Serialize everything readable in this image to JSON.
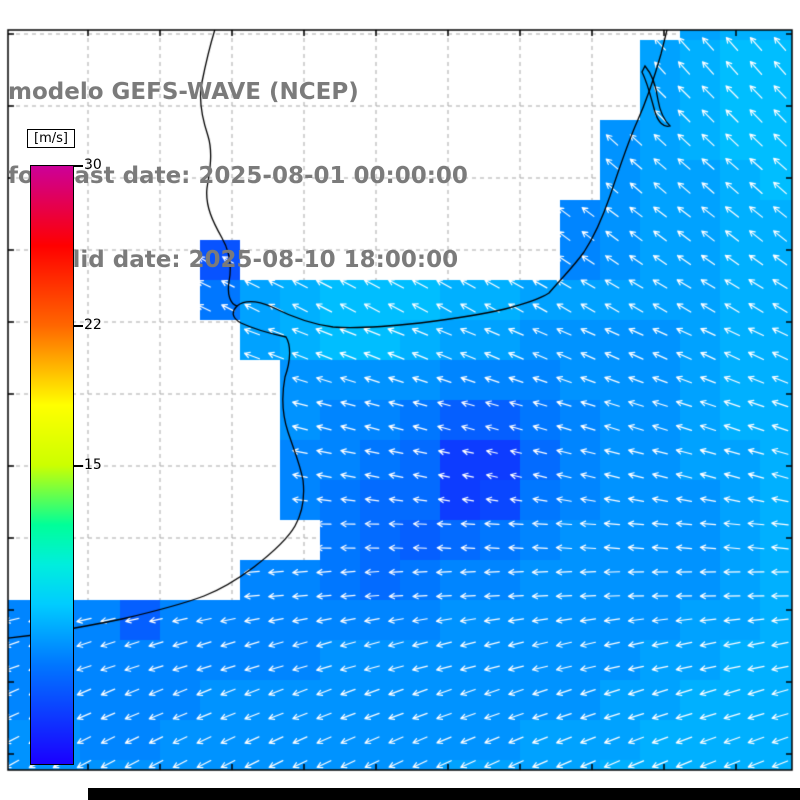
{
  "header": {
    "line1": "modelo GEFS-WAVE (NCEP)",
    "line2": "forecast date: 2025-08-01 00:00:00",
    "line3": "valid date: 2025-08-10 18:00:00",
    "text_color": "#7b7b7b"
  },
  "chart_data": {
    "type": "heatmap",
    "overlay": "vector-field",
    "title": "modelo GEFS-WAVE (NCEP)",
    "units": "m/s",
    "colorbar": {
      "unit_label": "[m/s]",
      "min": 0,
      "max": 30,
      "ticks": [
        {
          "label": "30",
          "value": 30
        },
        {
          "label": "22",
          "value": 22
        },
        {
          "label": "15",
          "value": 15
        }
      ]
    },
    "colormap_stops": [
      [
        0,
        "#1a00ff"
      ],
      [
        5,
        "#0077ff"
      ],
      [
        8,
        "#00ccff"
      ],
      [
        10,
        "#00eedd"
      ],
      [
        12,
        "#00ff99"
      ],
      [
        15,
        "#ccff00"
      ],
      [
        18,
        "#ffff00"
      ],
      [
        22,
        "#ff6600"
      ],
      [
        26,
        "#ff0000"
      ],
      [
        30,
        "#cc0099"
      ]
    ],
    "grid_cols": 20,
    "grid_rows": 20,
    "speeds": [
      [
        null,
        null,
        null,
        null,
        null,
        null,
        null,
        null,
        null,
        null,
        null,
        null,
        null,
        null,
        null,
        null,
        null,
        6.5,
        7,
        7
      ],
      [
        null,
        null,
        null,
        null,
        null,
        null,
        null,
        null,
        null,
        null,
        null,
        null,
        null,
        null,
        null,
        null,
        6.5,
        7,
        7.5,
        7.5
      ],
      [
        null,
        null,
        null,
        null,
        null,
        null,
        null,
        null,
        null,
        null,
        null,
        null,
        null,
        null,
        null,
        null,
        6.5,
        7,
        7.5,
        7.5
      ],
      [
        null,
        null,
        null,
        null,
        null,
        null,
        null,
        null,
        null,
        null,
        null,
        null,
        null,
        null,
        null,
        6,
        6.5,
        7,
        7.5,
        7.5
      ],
      [
        null,
        null,
        null,
        null,
        null,
        null,
        null,
        null,
        null,
        null,
        null,
        null,
        null,
        null,
        null,
        6,
        6.5,
        6.5,
        7,
        7.5
      ],
      [
        null,
        null,
        null,
        null,
        null,
        null,
        null,
        null,
        null,
        null,
        null,
        null,
        null,
        null,
        5.5,
        6,
        6.5,
        6.5,
        7,
        7
      ],
      [
        null,
        null,
        null,
        null,
        null,
        3.5,
        null,
        null,
        null,
        null,
        null,
        null,
        null,
        null,
        5.5,
        6,
        6.5,
        6.5,
        7,
        7
      ],
      [
        null,
        null,
        null,
        null,
        null,
        5,
        6.5,
        7,
        7.5,
        7.5,
        7.5,
        7,
        7,
        6.5,
        6.5,
        6.5,
        6.5,
        6.5,
        7,
        7
      ],
      [
        null,
        null,
        null,
        null,
        null,
        null,
        6.5,
        7,
        7.5,
        7.5,
        7,
        6.5,
        6.5,
        6,
        6,
        6,
        6,
        6.5,
        7,
        7
      ],
      [
        null,
        null,
        null,
        null,
        null,
        null,
        null,
        6,
        6,
        6,
        6,
        5.5,
        5.5,
        5.5,
        6,
        6,
        6,
        6.5,
        7,
        7
      ],
      [
        null,
        null,
        null,
        null,
        null,
        null,
        null,
        6,
        5.5,
        5.5,
        5,
        4,
        4,
        5,
        5.5,
        6,
        6,
        6.5,
        7,
        7
      ],
      [
        null,
        null,
        null,
        null,
        null,
        null,
        null,
        5.5,
        5.5,
        5,
        4.5,
        2.5,
        2.5,
        4.5,
        5.5,
        6,
        6,
        6.5,
        6.5,
        7
      ],
      [
        null,
        null,
        null,
        null,
        null,
        null,
        null,
        5.5,
        5,
        4.5,
        4.5,
        2.5,
        3,
        5,
        5.5,
        6,
        6,
        6,
        6.5,
        7
      ],
      [
        null,
        null,
        null,
        null,
        null,
        null,
        null,
        null,
        5,
        4.5,
        4,
        4.5,
        5,
        5.5,
        6,
        6,
        6,
        6,
        6.5,
        7
      ],
      [
        null,
        null,
        null,
        null,
        null,
        null,
        5.5,
        5.5,
        5,
        4.5,
        5,
        5.5,
        5.5,
        6,
        6,
        6,
        6,
        6,
        6.5,
        7
      ],
      [
        5.5,
        5.5,
        5.5,
        4,
        5.5,
        5.5,
        5.5,
        5.5,
        5.5,
        5.5,
        5.5,
        6,
        6,
        6,
        6,
        6,
        6,
        6.5,
        6.5,
        7
      ],
      [
        5.5,
        5.5,
        5.5,
        5.5,
        5.5,
        5.5,
        5.5,
        5.5,
        6,
        6,
        6,
        6,
        6,
        6,
        6,
        6,
        6.5,
        6.5,
        7,
        7
      ],
      [
        5.5,
        5.5,
        5.5,
        5.5,
        5.5,
        6,
        6,
        6,
        6,
        6,
        6,
        6,
        6,
        6,
        6,
        6.5,
        6.5,
        7,
        7,
        7
      ],
      [
        6,
        6,
        5.5,
        5.5,
        6,
        6,
        6,
        6,
        6,
        6,
        6,
        6,
        6,
        6.5,
        6.5,
        6.5,
        7,
        7,
        7,
        7
      ],
      [
        6,
        6,
        6,
        6,
        6,
        6,
        6,
        6,
        6,
        6,
        6,
        6.5,
        6.5,
        6.5,
        6.5,
        7,
        7,
        7,
        7,
        7
      ]
    ],
    "dir_rows_deg": [
      225,
      225,
      222,
      220,
      218,
      215,
      212,
      208,
      202,
      198,
      195,
      192,
      188,
      182,
      176,
      170,
      165,
      160,
      157,
      155
    ],
    "arrow_color": "#ffffff",
    "land_color": "#ffffff",
    "coast_color": "#000000",
    "grid_color": "#a8a8a8",
    "frame_color": "#000000",
    "coastline_paths": [
      "M 668 26 L 661 54 C 652 86 645 104 637 122 C 628 142 618 172 610 196 C 601 222 592 240 584 252 C 574 266 562 278 549 293 C 538 300 524 304 505 309 C 480 315 452 319 420 323 C 392 326 362 329 333 327 C 310 324 292 317 272 307 C 258 301 246 299 237 306 C 231 312 232 318 241 323 C 256 330 272 334 286 337 C 291 345 291 360 285 377 C 281 398 282 414 288 432 C 294 450 300 464 303 480 C 305 498 303 512 295 526 C 287 540 272 553 254 567 C 238 579 222 589 204 596 C 180 605 152 612 122 619 C 94 625 64 630 34 635 L 0 639",
      "M 216 26 C 210 45 206 62 202 82 C 198 100 202 118 208 136 C 213 152 210 170 207 188 C 205 206 213 222 222 238 C 230 252 232 266 229 282 C 227 294 230 304 237 306",
      "M 645 66 C 652 74 656 86 658 100 C 660 112 664 120 670 126 C 664 128 658 122 655 112 C 651 98 648 84 642 72 Z"
    ]
  }
}
